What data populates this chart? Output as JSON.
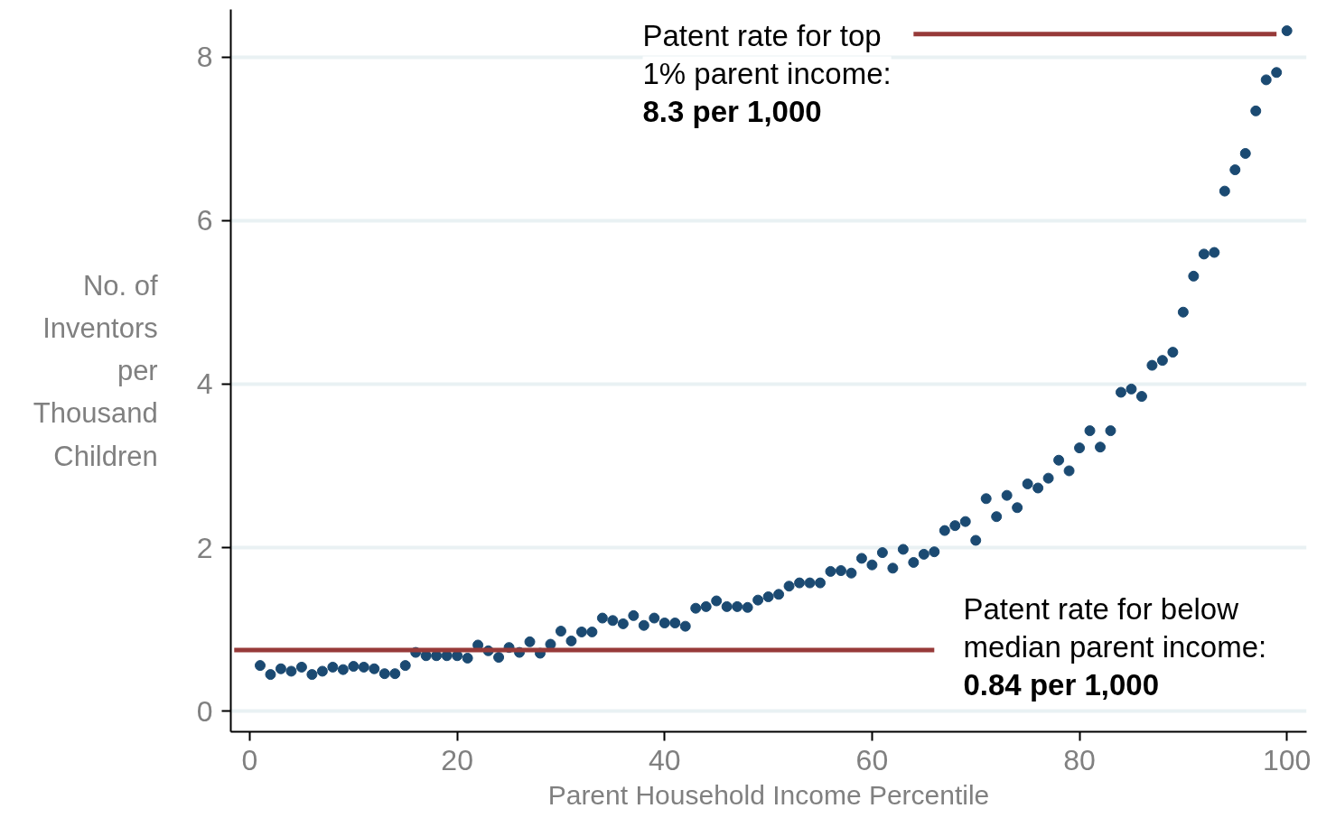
{
  "chart_data": {
    "type": "scatter",
    "xlabel": "Parent Household Income Percentile",
    "ylabel": "No. of\nInventors\nper\nThousand\nChildren",
    "x": [
      1,
      2,
      3,
      4,
      5,
      6,
      7,
      8,
      9,
      10,
      11,
      12,
      13,
      14,
      15,
      16,
      17,
      18,
      19,
      20,
      21,
      22,
      23,
      24,
      25,
      26,
      27,
      28,
      29,
      30,
      31,
      32,
      33,
      34,
      35,
      36,
      37,
      38,
      39,
      40,
      41,
      42,
      43,
      44,
      45,
      46,
      47,
      48,
      49,
      50,
      51,
      52,
      53,
      54,
      55,
      56,
      57,
      58,
      59,
      60,
      61,
      62,
      63,
      64,
      65,
      66,
      67,
      68,
      69,
      70,
      71,
      72,
      73,
      74,
      75,
      76,
      77,
      78,
      79,
      80,
      81,
      82,
      83,
      84,
      85,
      86,
      87,
      88,
      89,
      90,
      91,
      92,
      93,
      94,
      95,
      96,
      97,
      98,
      99,
      100
    ],
    "series": [
      {
        "color": "#1b4a72",
        "marker": "circle",
        "values": [
          0.56,
          0.45,
          0.52,
          0.49,
          0.54,
          0.45,
          0.49,
          0.54,
          0.51,
          0.55,
          0.54,
          0.52,
          0.46,
          0.46,
          0.56,
          0.72,
          0.68,
          0.68,
          0.68,
          0.68,
          0.65,
          0.81,
          0.74,
          0.66,
          0.78,
          0.72,
          0.85,
          0.71,
          0.82,
          0.98,
          0.86,
          0.97,
          0.97,
          1.14,
          1.11,
          1.07,
          1.17,
          1.05,
          1.14,
          1.08,
          1.08,
          1.04,
          1.26,
          1.28,
          1.35,
          1.28,
          1.28,
          1.27,
          1.36,
          1.4,
          1.43,
          1.53,
          1.57,
          1.57,
          1.57,
          1.71,
          1.72,
          1.69,
          1.87,
          1.79,
          1.94,
          1.75,
          1.98,
          1.82,
          1.92,
          1.95,
          2.21,
          2.27,
          2.32,
          2.09,
          2.6,
          2.38,
          2.64,
          2.49,
          2.78,
          2.73,
          2.85,
          3.07,
          2.94,
          3.22,
          3.43,
          3.23,
          3.43,
          3.9,
          3.94,
          3.85,
          4.23,
          4.29,
          4.39,
          4.88,
          5.32,
          5.59,
          5.61,
          6.36,
          6.62,
          6.82,
          7.34,
          7.72,
          7.81,
          8.32
        ]
      },
      {
        "type": "line",
        "color": "#973a39",
        "line_style": "solid",
        "x": [
          -1.5,
          66
        ],
        "values": [
          0.75,
          0.75
        ]
      },
      {
        "type": "line",
        "color": "#973a39",
        "line_style": "solid",
        "x": [
          64,
          99
        ],
        "values": [
          8.28,
          8.28
        ]
      }
    ],
    "annotations": [
      "Patent rate for top\n1% parent income:\n8.3 per 1,000",
      "Patent rate for below\nmedian parent income:\n0.84 per 1,000"
    ],
    "xlim": [
      -1.83,
      101.9
    ],
    "ylim": [
      -0.25,
      8.58
    ],
    "xticks": [
      0,
      20,
      40,
      60,
      80,
      100
    ],
    "yticks": [
      0,
      2,
      4,
      6,
      8
    ],
    "grid": "y"
  }
}
